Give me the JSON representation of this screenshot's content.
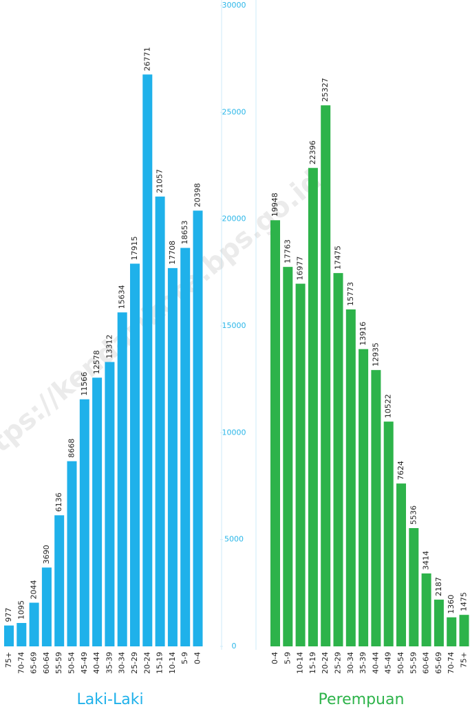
{
  "watermark": "https://kendarikota.bps.go.id",
  "chart_data": [
    {
      "type": "bar",
      "title": "Laki-Laki",
      "color": "#1fb1ea",
      "categories": [
        "75+",
        "70-74",
        "65-69",
        "60-64",
        "55-59",
        "50-54",
        "45-49",
        "40-44",
        "35-39",
        "30-34",
        "25-29",
        "20-24",
        "15-19",
        "10-14",
        "5-9",
        "0-4"
      ],
      "values": [
        977,
        1095,
        2044,
        3690,
        6136,
        8668,
        11566,
        12578,
        13312,
        15634,
        17915,
        26771,
        21057,
        17708,
        18653,
        20398
      ],
      "ylim": [
        0,
        30000
      ],
      "yticks": [
        0,
        5000,
        10000,
        15000,
        20000,
        25000,
        30000
      ]
    },
    {
      "type": "bar",
      "title": "Perempuan",
      "color": "#2db34a",
      "categories": [
        "0-4",
        "5-9",
        "10-14",
        "15-19",
        "20-24",
        "25-29",
        "30-34",
        "35-39",
        "40-44",
        "45-49",
        "50-54",
        "55-59",
        "60-64",
        "65-69",
        "70-74",
        "75+"
      ],
      "values": [
        19948,
        17763,
        16977,
        22396,
        25327,
        17475,
        15773,
        13916,
        12935,
        10522,
        7624,
        5536,
        3414,
        2187,
        1360,
        1475
      ],
      "ylim": [
        0,
        30000
      ]
    }
  ]
}
